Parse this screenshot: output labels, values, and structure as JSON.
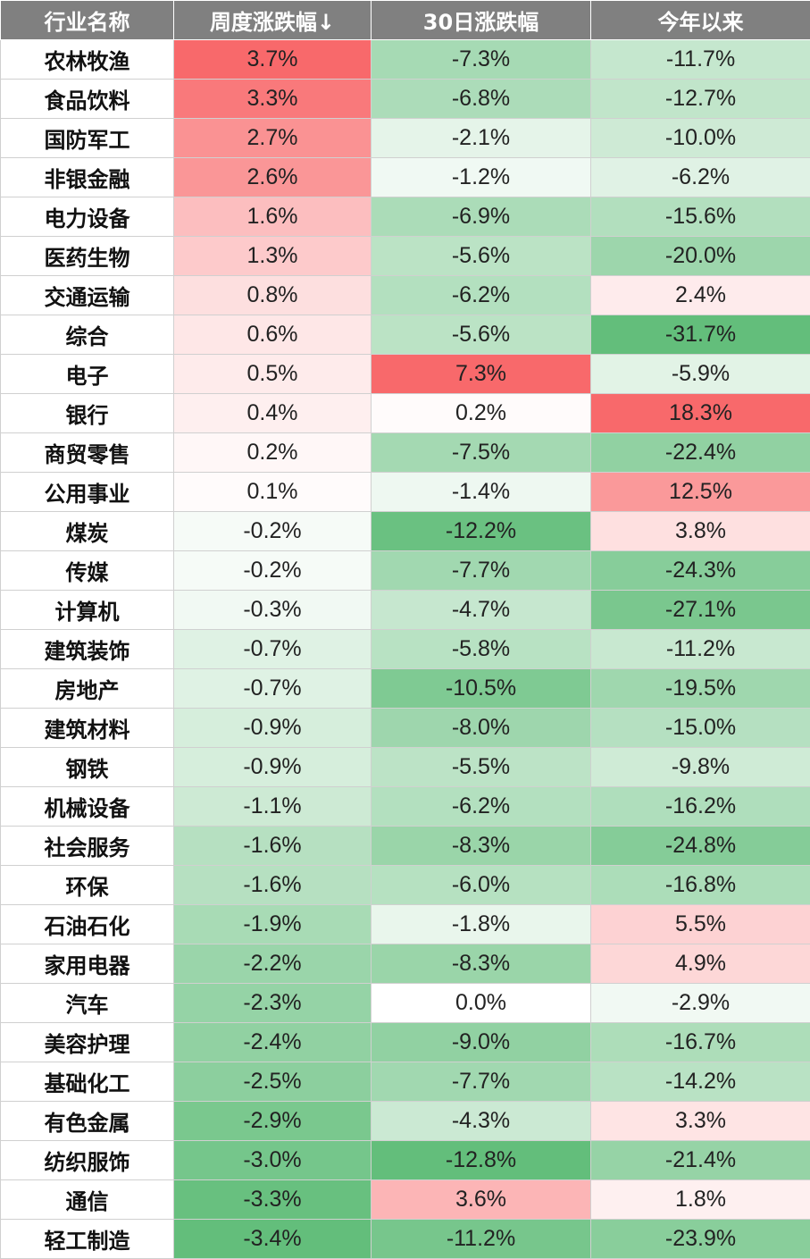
{
  "colors": {
    "header_bg": "#808080",
    "header_text": "#ffffff",
    "positive": "#f8696b",
    "negative": "#63be7b",
    "neutral": "#ffffff"
  },
  "chart_data": {
    "type": "table",
    "columns": [
      "行业名称",
      "周度涨跌幅↓",
      "30日涨跌幅",
      "今年以来"
    ],
    "rows": [
      {
        "name": "农林牧渔",
        "values": [
          3.7,
          -7.3,
          -11.7
        ]
      },
      {
        "name": "食品饮料",
        "values": [
          3.3,
          -6.8,
          -12.7
        ]
      },
      {
        "name": "国防军工",
        "values": [
          2.7,
          -2.1,
          -10.0
        ]
      },
      {
        "name": "非银金融",
        "values": [
          2.6,
          -1.2,
          -6.2
        ]
      },
      {
        "name": "电力设备",
        "values": [
          1.6,
          -6.9,
          -15.6
        ]
      },
      {
        "name": "医药生物",
        "values": [
          1.3,
          -5.6,
          -20.0
        ]
      },
      {
        "name": "交通运输",
        "values": [
          0.8,
          -6.2,
          2.4
        ]
      },
      {
        "name": "综合",
        "values": [
          0.6,
          -5.6,
          -31.7
        ]
      },
      {
        "name": "电子",
        "values": [
          0.5,
          7.3,
          -5.9
        ]
      },
      {
        "name": "银行",
        "values": [
          0.4,
          0.2,
          18.3
        ]
      },
      {
        "name": "商贸零售",
        "values": [
          0.2,
          -7.5,
          -22.4
        ]
      },
      {
        "name": "公用事业",
        "values": [
          0.1,
          -1.4,
          12.5
        ]
      },
      {
        "name": "煤炭",
        "values": [
          -0.2,
          -12.2,
          3.8
        ]
      },
      {
        "name": "传媒",
        "values": [
          -0.2,
          -7.7,
          -24.3
        ]
      },
      {
        "name": "计算机",
        "values": [
          -0.3,
          -4.7,
          -27.1
        ]
      },
      {
        "name": "建筑装饰",
        "values": [
          -0.7,
          -5.8,
          -11.2
        ]
      },
      {
        "name": "房地产",
        "values": [
          -0.7,
          -10.5,
          -19.5
        ]
      },
      {
        "name": "建筑材料",
        "values": [
          -0.9,
          -8.0,
          -15.0
        ]
      },
      {
        "name": "钢铁",
        "values": [
          -0.9,
          -5.5,
          -9.8
        ]
      },
      {
        "name": "机械设备",
        "values": [
          -1.1,
          -6.2,
          -16.2
        ]
      },
      {
        "name": "社会服务",
        "values": [
          -1.6,
          -8.3,
          -24.8
        ]
      },
      {
        "name": "环保",
        "values": [
          -1.6,
          -6.0,
          -16.8
        ]
      },
      {
        "name": "石油石化",
        "values": [
          -1.9,
          -1.8,
          5.5
        ]
      },
      {
        "name": "家用电器",
        "values": [
          -2.2,
          -8.3,
          4.9
        ]
      },
      {
        "name": "汽车",
        "values": [
          -2.3,
          0.0,
          -2.9
        ]
      },
      {
        "name": "美容护理",
        "values": [
          -2.4,
          -9.0,
          -16.7
        ]
      },
      {
        "name": "基础化工",
        "values": [
          -2.5,
          -7.7,
          -14.2
        ]
      },
      {
        "name": "有色金属",
        "values": [
          -2.9,
          -4.3,
          3.3
        ]
      },
      {
        "name": "纺织服饰",
        "values": [
          -3.0,
          -12.8,
          -21.4
        ]
      },
      {
        "name": "通信",
        "values": [
          -3.3,
          3.6,
          1.8
        ]
      },
      {
        "name": "轻工制造",
        "values": [
          -3.4,
          -11.2,
          -23.9
        ]
      }
    ]
  }
}
